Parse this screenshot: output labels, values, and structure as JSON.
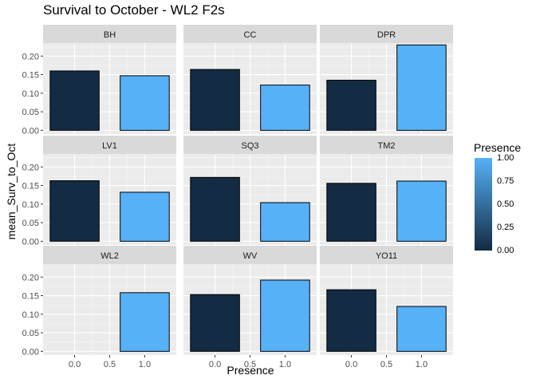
{
  "chart_data": {
    "type": "bar",
    "title": "Survival to October - WL2 F2s",
    "xlabel": "Presence",
    "ylabel": "mean_Surv_to_Oct",
    "x_ticks": [
      "0.0",
      "0.5",
      "1.0"
    ],
    "y_ticks": [
      "0.00",
      "0.05",
      "0.10",
      "0.15",
      "0.20"
    ],
    "ylim": [
      0,
      0.245
    ],
    "xlim": [
      -0.45,
      1.45
    ],
    "facets": [
      {
        "label": "BH",
        "bars": [
          {
            "presence": 0,
            "value": 0.16
          },
          {
            "presence": 1,
            "value": 0.147
          }
        ]
      },
      {
        "label": "CC",
        "bars": [
          {
            "presence": 0,
            "value": 0.164
          },
          {
            "presence": 1,
            "value": 0.122
          }
        ]
      },
      {
        "label": "DPR",
        "bars": [
          {
            "presence": 0,
            "value": 0.135
          },
          {
            "presence": 1,
            "value": 0.23
          }
        ]
      },
      {
        "label": "LV1",
        "bars": [
          {
            "presence": 0,
            "value": 0.163
          },
          {
            "presence": 1,
            "value": 0.132
          }
        ]
      },
      {
        "label": "SQ3",
        "bars": [
          {
            "presence": 0,
            "value": 0.172
          },
          {
            "presence": 1,
            "value": 0.104
          }
        ]
      },
      {
        "label": "TM2",
        "bars": [
          {
            "presence": 0,
            "value": 0.156
          },
          {
            "presence": 1,
            "value": 0.162
          }
        ]
      },
      {
        "label": "WL2",
        "bars": [
          {
            "presence": 1,
            "value": 0.158
          }
        ]
      },
      {
        "label": "WV",
        "bars": [
          {
            "presence": 0,
            "value": 0.153
          },
          {
            "presence": 1,
            "value": 0.192
          }
        ]
      },
      {
        "label": "YO11",
        "bars": [
          {
            "presence": 0,
            "value": 0.166
          },
          {
            "presence": 1,
            "value": 0.121
          }
        ]
      }
    ],
    "legend": {
      "title": "Presence",
      "position": "right",
      "labels": [
        "1.00",
        "0.75",
        "0.50",
        "0.25",
        "0.00"
      ],
      "values": [
        1.0,
        0.75,
        0.5,
        0.25,
        0.0
      ]
    },
    "colors": {
      "low": "#132B43",
      "high": "#56B1F7",
      "panel": "#EBEBEB",
      "strip": "#D9D9D9",
      "grid": "#FFFFFF"
    },
    "grid": true
  }
}
